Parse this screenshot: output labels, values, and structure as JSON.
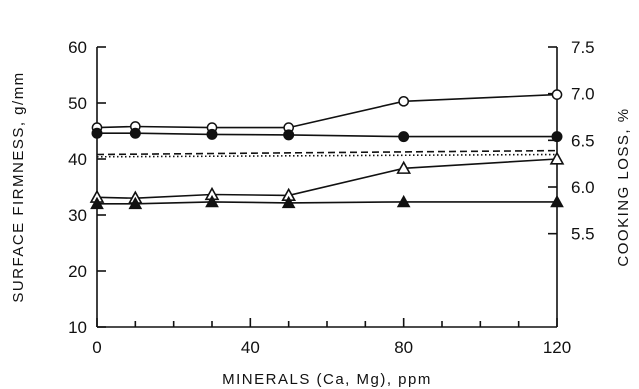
{
  "chart_data": {
    "type": "line",
    "xlabel": "MINERALS (Ca, Mg), ppm",
    "ylabel_left": "SURFACE FIRMNESS, g/mm",
    "ylabel_right": "COOKING LOSS, %",
    "xlim": [
      0,
      120
    ],
    "ylim_left": [
      10,
      60
    ],
    "ylim_right": [
      4.5,
      7.5
    ],
    "x_ticks": [
      0,
      40,
      80,
      120
    ],
    "x_minor_ticks": [
      10,
      20,
      30,
      50,
      60,
      70,
      90,
      100,
      110
    ],
    "y_ticks_left": [
      10,
      20,
      30,
      40,
      50,
      60
    ],
    "y_ticks_right": [
      5.5,
      6.0,
      6.5,
      7.0,
      7.5
    ],
    "y_tick_labels_right": [
      "5.5",
      "6.0",
      "6.5",
      "7.0",
      "7.5"
    ],
    "grid": false,
    "series": [
      {
        "axis": "left",
        "marker": "open-circle",
        "line": "solid",
        "color": "#111111",
        "x": [
          0,
          10,
          30,
          50,
          80,
          120
        ],
        "y": [
          45.6,
          45.8,
          45.6,
          45.6,
          50.3,
          51.5
        ]
      },
      {
        "axis": "left",
        "marker": "filled-circle",
        "line": "solid",
        "color": "#111111",
        "x": [
          0,
          10,
          30,
          50,
          80,
          120
        ],
        "y": [
          44.6,
          44.6,
          44.4,
          44.3,
          44.0,
          44.0
        ]
      },
      {
        "axis": "right",
        "marker": "open-triangle",
        "line": "solid",
        "color": "#111111",
        "x": [
          0,
          10,
          30,
          50,
          80,
          120
        ],
        "y": [
          5.89,
          5.88,
          5.92,
          5.91,
          6.2,
          6.3
        ]
      },
      {
        "axis": "right",
        "marker": "filled-triangle",
        "line": "solid",
        "color": "#111111",
        "x": [
          0,
          10,
          30,
          50,
          80,
          120
        ],
        "y": [
          5.82,
          5.82,
          5.84,
          5.83,
          5.84,
          5.84
        ]
      },
      {
        "axis": "left",
        "marker": "none",
        "line": "dashed",
        "color": "#111111",
        "x": [
          0,
          120
        ],
        "y": [
          40.8,
          41.5
        ]
      },
      {
        "axis": "left",
        "marker": "none",
        "line": "dotted",
        "color": "#111111",
        "x": [
          0,
          120
        ],
        "y": [
          40.4,
          40.8
        ]
      }
    ],
    "annotations": [
      {
        "type": "right-axis-indicator-arrow",
        "x": 50,
        "y_left": 38
      }
    ]
  }
}
